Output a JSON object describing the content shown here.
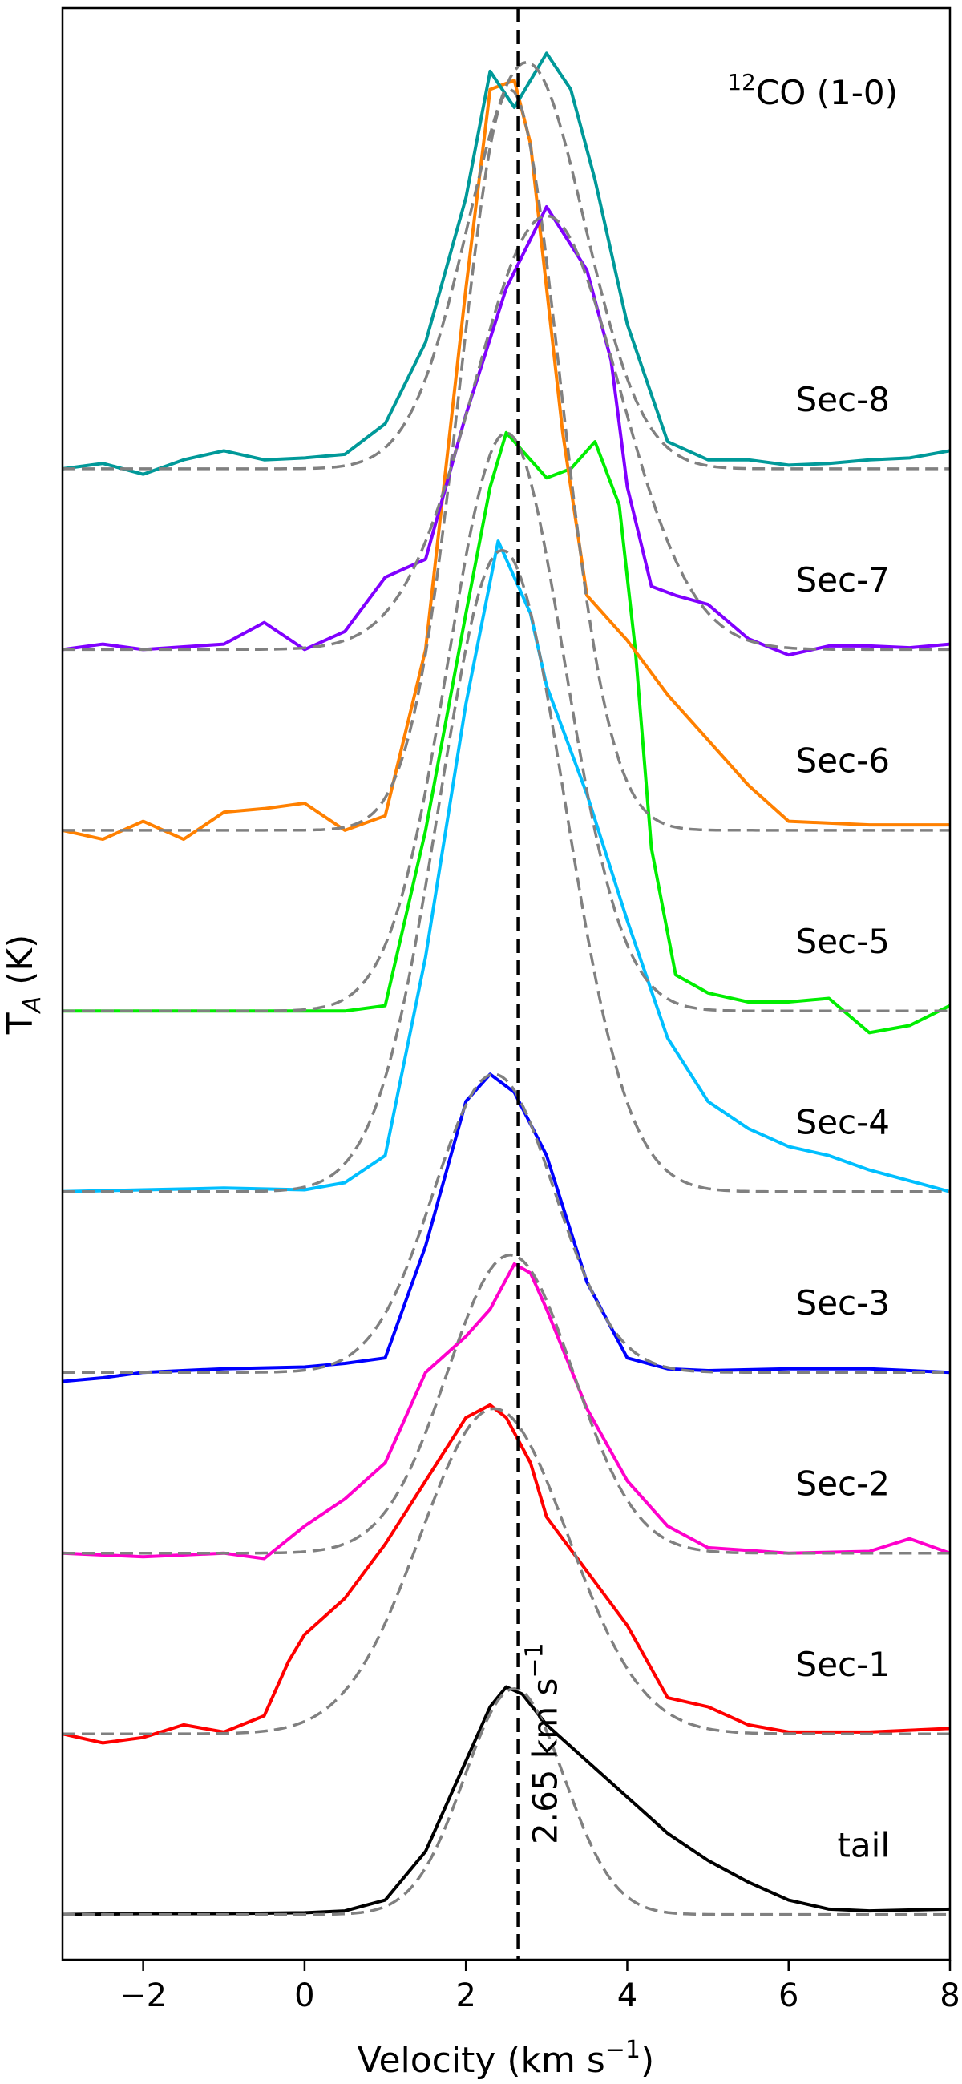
{
  "chart_data": {
    "type": "line",
    "title": "",
    "annotation": "(1-0)",
    "annotation_species_sup": "12",
    "annotation_species": "CO",
    "xlabel": "Velocity (km s",
    "xlabel_sup": "−1",
    "xlabel_close": ")",
    "ylabel_main": "T",
    "ylabel_sub": "A",
    "ylabel_unit": " (K)",
    "xlim": [
      -3,
      8
    ],
    "x_ticks": [
      -2,
      0,
      2,
      4,
      6,
      8
    ],
    "x_tick_labels": [
      "−2",
      "0",
      "2",
      "4",
      "6",
      "8"
    ],
    "y_ticks_shown": false,
    "reference_line": {
      "x": 2.65,
      "label": "2.65 km s",
      "label_sup": "−1",
      "color": "#000000",
      "style": "dashed"
    },
    "fit_style": {
      "color": "#808080",
      "style": "dashed"
    },
    "series": [
      {
        "name": "tail",
        "color": "#000000",
        "offset": 0,
        "x": [
          -3,
          -2,
          -1,
          0,
          0.5,
          1,
          1.5,
          2,
          2.3,
          2.5,
          2.7,
          3,
          3.5,
          4,
          4.5,
          5,
          5.5,
          6,
          6.5,
          7,
          8
        ],
        "y": [
          0,
          0.05,
          0.05,
          0.1,
          0.2,
          0.8,
          3.5,
          8.5,
          11.5,
          12.6,
          12.2,
          10.5,
          8.5,
          6.5,
          4.5,
          3,
          1.8,
          0.8,
          0.3,
          0.2,
          0.3
        ],
        "fit": {
          "amp": 12.5,
          "center": 2.6,
          "sigma": 0.62
        }
      },
      {
        "name": "Sec-1",
        "color": "#ff0000",
        "offset": 10,
        "x": [
          -3,
          -2.5,
          -2,
          -1.5,
          -1,
          -0.5,
          -0.2,
          0,
          0.5,
          1,
          1.5,
          2,
          2.3,
          2.5,
          2.8,
          3,
          3.5,
          4,
          4.5,
          5,
          5.5,
          6,
          7,
          8
        ],
        "y": [
          0,
          -0.5,
          -0.2,
          0.5,
          0.1,
          1,
          4,
          5.5,
          7.5,
          10.5,
          14,
          17.5,
          18.2,
          17.5,
          15,
          12,
          9,
          6,
          2,
          1.5,
          0.5,
          0.1,
          0.1,
          0.3
        ],
        "fit": {
          "amp": 18,
          "center": 2.35,
          "sigma": 0.92
        }
      },
      {
        "name": "Sec-2",
        "color": "#ff00cc",
        "offset": 20,
        "x": [
          -3,
          -2,
          -1,
          -0.5,
          0,
          0.5,
          1,
          1.5,
          2,
          2.3,
          2.6,
          2.8,
          3,
          3.5,
          4,
          4.5,
          5,
          6,
          7,
          7.5,
          8
        ],
        "y": [
          0,
          -0.2,
          0,
          -0.3,
          1.5,
          3,
          5,
          10,
          12,
          13.5,
          16,
          15.5,
          13.5,
          8,
          4,
          1.5,
          0.3,
          0,
          0.1,
          0.8,
          0
        ],
        "fit": {
          "amp": 16.5,
          "center": 2.55,
          "sigma": 0.78
        }
      },
      {
        "name": "Sec-3",
        "color": "#0000ff",
        "offset": 30,
        "x": [
          -3,
          -2.5,
          -2,
          -1,
          0,
          0.5,
          1,
          1.5,
          2,
          2.3,
          2.6,
          3,
          3.5,
          4,
          4.5,
          5,
          6,
          7,
          8
        ],
        "y": [
          -0.5,
          -0.3,
          0,
          0.2,
          0.3,
          0.5,
          0.8,
          7,
          15,
          16.5,
          15.5,
          12,
          5,
          0.8,
          0.2,
          0.1,
          0.2,
          0.2,
          0
        ],
        "fit": {
          "amp": 16.5,
          "center": 2.35,
          "sigma": 0.75
        }
      },
      {
        "name": "Sec-4",
        "color": "#00bfff",
        "offset": 40,
        "x": [
          -3,
          -2,
          -1,
          0,
          0.5,
          1,
          1.5,
          2,
          2.4,
          2.8,
          3,
          3.5,
          4,
          4.5,
          5,
          5.5,
          6,
          6.5,
          7,
          8
        ],
        "y": [
          0,
          0.1,
          0.2,
          0.1,
          0.5,
          2,
          13,
          27,
          36,
          32,
          28,
          22,
          15,
          8.5,
          5,
          3.5,
          2.5,
          2,
          1.2,
          0
        ],
        "fit": {
          "amp": 35.5,
          "center": 2.45,
          "sigma": 0.78
        }
      },
      {
        "name": "Sec-5",
        "color": "#00ee00",
        "offset": 50,
        "x": [
          -3,
          -2,
          -1,
          0,
          0.5,
          1,
          1.5,
          2,
          2.3,
          2.5,
          2.8,
          3,
          3.3,
          3.6,
          3.9,
          4.1,
          4.3,
          4.6,
          5,
          5.5,
          6,
          6.5,
          7,
          7.5,
          8
        ],
        "y": [
          0,
          0,
          0,
          0,
          0,
          0.3,
          10,
          22,
          29,
          32,
          30.5,
          29.5,
          30,
          31.5,
          28,
          20,
          9,
          2,
          1,
          0.5,
          0.5,
          0.7,
          -1.2,
          -0.8,
          0.3
        ],
        "fit": {
          "amp": 32,
          "center": 2.5,
          "sigma": 0.72
        }
      },
      {
        "name": "Sec-6",
        "color": "#ff8000",
        "offset": 60,
        "x": [
          -3,
          -2.5,
          -2,
          -1.5,
          -1,
          -0.5,
          0,
          0.5,
          1,
          1.5,
          2,
          2.3,
          2.6,
          2.8,
          3,
          3.2,
          3.5,
          4,
          4.5,
          5,
          5.5,
          6,
          7,
          8
        ],
        "y": [
          0,
          -0.5,
          0.5,
          -0.5,
          1,
          1.2,
          1.5,
          0,
          0.8,
          10,
          30,
          41,
          41.5,
          38,
          30,
          22,
          13,
          10.5,
          7.5,
          5,
          2.5,
          0.5,
          0.3,
          0.3
        ],
        "fit": {
          "amp": 41,
          "center": 2.55,
          "sigma": 0.62
        }
      },
      {
        "name": "Sec-7",
        "color": "#8000ff",
        "offset": 70,
        "x": [
          -3,
          -2.5,
          -2,
          -1,
          -0.5,
          0,
          0.5,
          1,
          1.5,
          2,
          2.5,
          3,
          3.5,
          3.8,
          4,
          4.3,
          4.6,
          5,
          5.5,
          6,
          6.5,
          7,
          7.5,
          8
        ],
        "y": [
          0,
          0.3,
          0,
          0.3,
          1.5,
          0,
          1,
          4,
          5,
          13,
          20,
          24.5,
          21,
          16,
          9,
          3.5,
          3,
          2.5,
          0.6,
          -0.3,
          0.2,
          0.2,
          0.1,
          0.3
        ],
        "fit": {
          "amp": 24,
          "center": 3.0,
          "sigma": 0.9
        }
      },
      {
        "name": "Sec-8",
        "color": "#009999",
        "offset": 80,
        "x": [
          -3,
          -2.5,
          -2,
          -1.5,
          -1,
          -0.5,
          0,
          0.5,
          1,
          1.5,
          2,
          2.3,
          2.6,
          3,
          3.3,
          3.6,
          4,
          4.5,
          5,
          5.5,
          6,
          6.5,
          7,
          7.5,
          8
        ],
        "y": [
          0,
          0.3,
          -0.3,
          0.5,
          1,
          0.5,
          0.6,
          0.8,
          2.5,
          7,
          15,
          22,
          20,
          23,
          21,
          16,
          8,
          1.5,
          0.5,
          0.5,
          0.2,
          0.3,
          0.5,
          0.6,
          1
        ],
        "fit": {
          "amp": 22.5,
          "center": 2.75,
          "sigma": 0.72
        }
      }
    ],
    "labels": [
      "tail",
      "Sec-1",
      "Sec-2",
      "Sec-3",
      "Sec-4",
      "Sec-5",
      "Sec-6",
      "Sec-7",
      "Sec-8"
    ]
  }
}
